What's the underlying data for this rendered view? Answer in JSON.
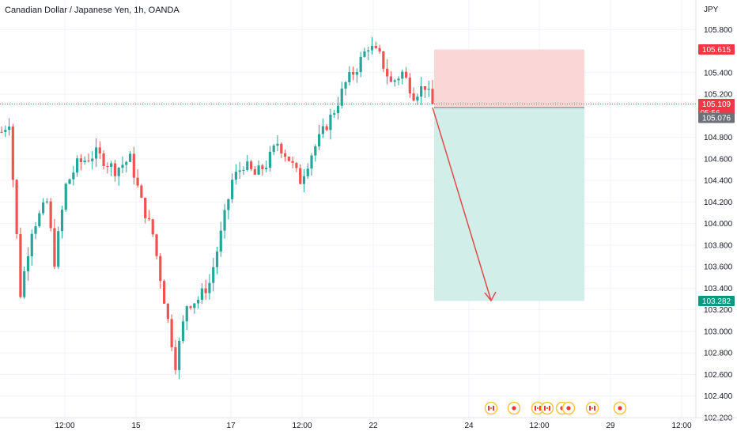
{
  "chart_data": {
    "type": "candlestick",
    "title": "Canadian Dollar / Japanese Yen, 1h, OANDA",
    "currency": "JPY",
    "ylim": [
      102.2,
      106.0
    ],
    "y_ticks": [
      "105.800",
      "105.400",
      "105.200",
      "104.800",
      "104.600",
      "104.400",
      "104.200",
      "104.000",
      "103.800",
      "103.600",
      "103.400",
      "103.200",
      "103.000",
      "102.800",
      "102.600",
      "102.400",
      "102.200"
    ],
    "x_ticks": [
      "12:00",
      "15",
      "17",
      "12:00",
      "22",
      "24",
      "12:00",
      "29",
      "12:00"
    ],
    "price_labels": {
      "target": "105.615",
      "current": "105.109",
      "countdown": "05:56",
      "entry": "105.076",
      "stop": "103.282"
    },
    "position": {
      "type": "short",
      "entry": 105.076,
      "profit_level": 105.615,
      "loss_level": 103.282
    },
    "trend_path": [
      [
        0,
        104.85
      ],
      [
        2,
        104.95
      ],
      [
        5,
        103.35
      ],
      [
        8,
        103.95
      ],
      [
        12,
        104.2
      ],
      [
        14,
        103.65
      ],
      [
        17,
        104.35
      ],
      [
        20,
        104.55
      ],
      [
        25,
        104.65
      ],
      [
        30,
        104.5
      ],
      [
        34,
        104.6
      ],
      [
        37,
        104.2
      ],
      [
        40,
        103.9
      ],
      [
        43,
        103.3
      ],
      [
        46,
        102.7
      ],
      [
        49,
        103.25
      ],
      [
        52,
        103.3
      ],
      [
        55,
        103.45
      ],
      [
        58,
        103.9
      ],
      [
        61,
        104.4
      ],
      [
        64,
        104.55
      ],
      [
        67,
        104.45
      ],
      [
        70,
        104.55
      ],
      [
        73,
        104.75
      ],
      [
        76,
        104.6
      ],
      [
        79,
        104.4
      ],
      [
        82,
        104.65
      ],
      [
        85,
        104.85
      ],
      [
        88,
        105.05
      ],
      [
        91,
        105.3
      ],
      [
        94,
        105.45
      ],
      [
        97,
        105.65
      ],
      [
        100,
        105.55
      ],
      [
        103,
        105.3
      ],
      [
        106,
        105.4
      ],
      [
        109,
        105.2
      ],
      [
        112,
        105.28
      ],
      [
        114,
        105.1
      ]
    ],
    "annotations": [
      "arrow pointing down toward target"
    ],
    "colors": {
      "up": "#26a69a",
      "down": "#ef5350",
      "profit_zone": "#d1eee9",
      "loss_zone": "#fbd6d6",
      "arrow": "#e04b4b",
      "label_red": "#f23645",
      "label_gray": "#6c7179",
      "label_green": "#089981"
    },
    "event_markers": [
      "ca-flag",
      "jp-flag",
      "ca-flag",
      "ca-flag",
      "jp-flag",
      "jp-flag",
      "ca-flag",
      "jp-flag"
    ]
  }
}
